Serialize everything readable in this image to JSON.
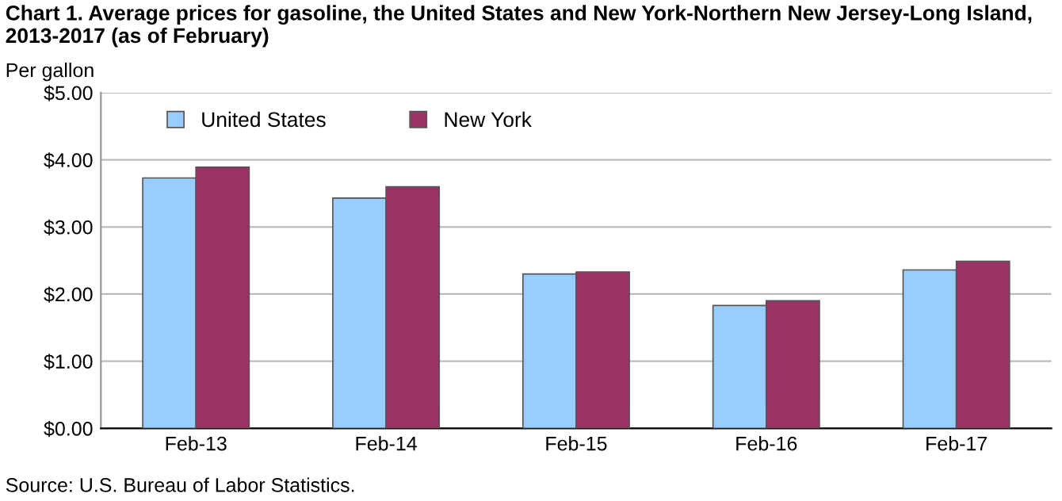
{
  "chart_data": {
    "type": "bar",
    "title": "Chart 1. Average prices for gasoline, the United States and New York-Northern New Jersey-Long Island, 2013-2017 (as of February)",
    "ylabel": "Per gallon",
    "categories": [
      "Feb-13",
      "Feb-14",
      "Feb-15",
      "Feb-16",
      "Feb-17"
    ],
    "series": [
      {
        "name": "United States",
        "color": "#99ccff",
        "values": [
          3.73,
          3.43,
          2.3,
          1.83,
          2.36
        ]
      },
      {
        "name": "New York",
        "color": "#993366",
        "values": [
          3.89,
          3.6,
          2.33,
          1.9,
          2.49
        ]
      }
    ],
    "ylim": [
      0,
      5
    ],
    "yticks": [
      {
        "value": 0,
        "label": "$0.00"
      },
      {
        "value": 1,
        "label": "$1.00"
      },
      {
        "value": 2,
        "label": "$2.00"
      },
      {
        "value": 3,
        "label": "$3.00"
      },
      {
        "value": 4,
        "label": "$4.00"
      },
      {
        "value": 5,
        "label": "$5.00"
      }
    ],
    "grid": "y",
    "legend": "top left",
    "annotations": [
      "Source: U.S. Bureau of Labor Statistics."
    ]
  }
}
